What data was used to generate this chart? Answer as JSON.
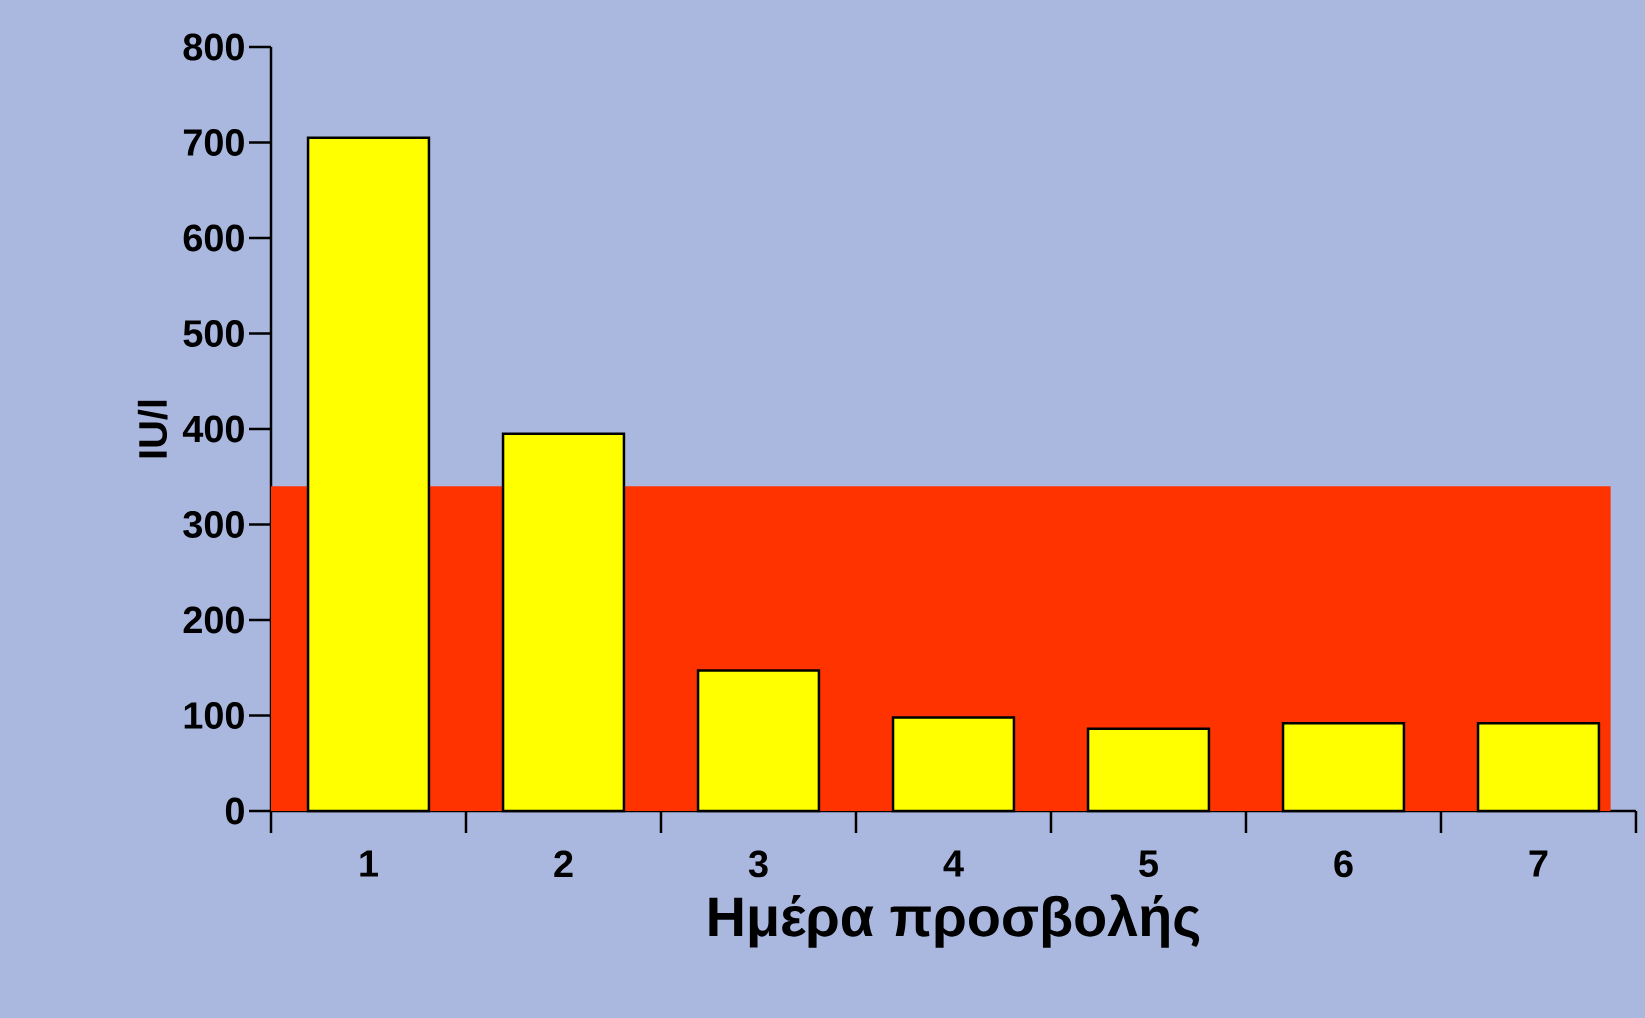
{
  "chart_data": {
    "type": "bar",
    "xlabel": "Ημέρα προσβολής",
    "ylabel": "IU/l",
    "categories": [
      "1",
      "2",
      "3",
      "4",
      "5",
      "6",
      "7"
    ],
    "values": [
      705,
      395,
      147,
      98,
      86,
      92,
      92
    ],
    "color": "#ffff00",
    "ylim": [
      0,
      800
    ],
    "yticks": [
      0,
      100,
      200,
      300,
      400,
      500,
      600,
      700,
      800
    ],
    "bands": [
      {
        "axis": "y",
        "from": 0,
        "to": 340,
        "color": "#ff3300"
      }
    ],
    "grid": false
  }
}
